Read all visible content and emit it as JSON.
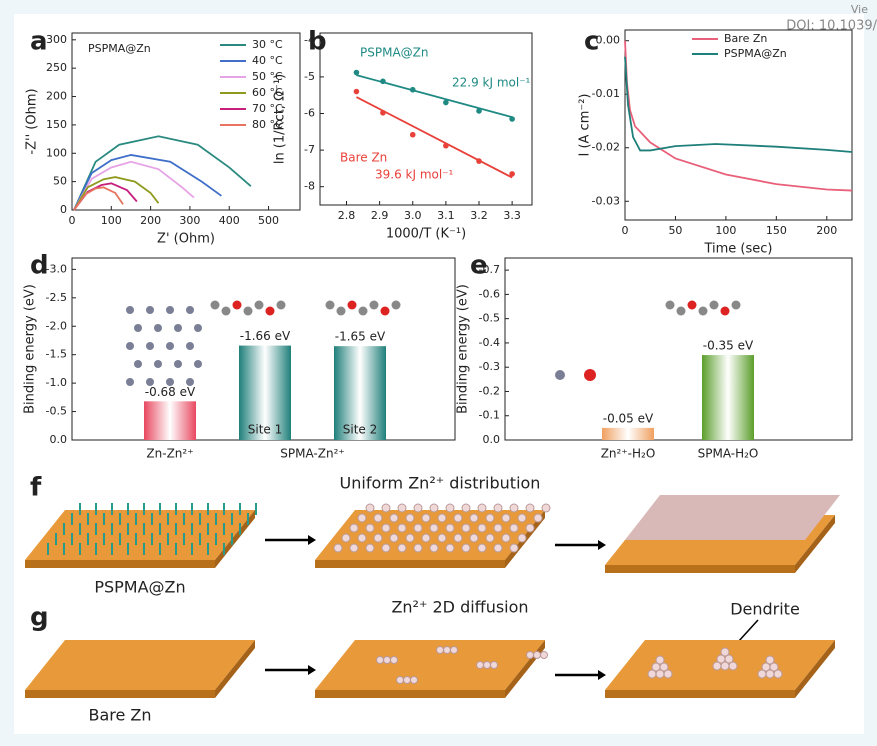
{
  "header": {
    "view": "Vie",
    "doi": "DOI: 10.1039/"
  },
  "panel_letters": [
    "a",
    "b",
    "c",
    "d",
    "e",
    "f",
    "g"
  ],
  "chart_data": [
    {
      "type": "line",
      "label": "PSPMA@Zn",
      "xlabel": "Z' (Ohm)",
      "ylabel": "-Z'' (Ohm)",
      "xlim": [
        0,
        580
      ],
      "xticks": [
        0,
        100,
        200,
        300,
        400,
        500
      ],
      "ylim": [
        0,
        312
      ],
      "yticks": [
        0,
        50,
        100,
        150,
        200,
        250,
        300
      ],
      "series": [
        {
          "name": "30 °C",
          "color": "#2a8a80",
          "x": [
            5,
            60,
            120,
            220,
            320,
            400,
            455
          ],
          "values": [
            0,
            85,
            115,
            130,
            115,
            75,
            42
          ]
        },
        {
          "name": "40 °C",
          "color": "#3f6fc8",
          "x": [
            5,
            50,
            100,
            150,
            250,
            330,
            380
          ],
          "values": [
            0,
            65,
            88,
            97,
            85,
            50,
            25
          ]
        },
        {
          "name": "50 °C",
          "color": "#e6a3e6",
          "x": [
            5,
            50,
            100,
            150,
            220,
            280,
            310
          ],
          "values": [
            0,
            55,
            75,
            85,
            72,
            40,
            22
          ]
        },
        {
          "name": "60 °C",
          "color": "#8d9a1e",
          "x": [
            5,
            40,
            80,
            110,
            160,
            200,
            220
          ],
          "values": [
            0,
            40,
            54,
            58,
            50,
            30,
            12
          ]
        },
        {
          "name": "70 °C",
          "color": "#c81e7c",
          "x": [
            5,
            40,
            75,
            100,
            140,
            165
          ],
          "values": [
            0,
            32,
            44,
            47,
            35,
            15
          ]
        },
        {
          "name": "80 °C",
          "color": "#e8735f",
          "x": [
            5,
            35,
            60,
            80,
            110,
            130
          ],
          "values": [
            0,
            28,
            38,
            40,
            30,
            10
          ]
        }
      ]
    },
    {
      "type": "scatter",
      "xlabel": "1000/T (K⁻¹)",
      "ylabel": "ln (1/Rct, Ω⁻¹)",
      "xlim": [
        2.72,
        3.36
      ],
      "xticks": [
        2.8,
        2.9,
        {
          "value": 3,
          "label": "3.0"
        },
        3.1,
        3.2,
        3.3
      ],
      "ylim": [
        -8.5,
        -3.8
      ],
      "yticks": [
        -8,
        -7,
        -6,
        -5,
        -4
      ],
      "series": [
        {
          "name": "PSPMA@Zn",
          "color": "#1f8a83",
          "annotation": "22.9 kJ mol⁻¹",
          "x": [
            2.83,
            2.91,
            3.0,
            3.1,
            3.2,
            3.3
          ],
          "values": [
            -4.88,
            -5.12,
            -5.35,
            -5.7,
            -5.93,
            -6.15
          ],
          "fit_x": [
            2.83,
            3.3
          ],
          "fit_values": [
            -4.95,
            -6.1
          ]
        },
        {
          "name": "Bare Zn",
          "color": "#e8413a",
          "annotation": "39.6 kJ mol⁻¹",
          "x": [
            2.83,
            2.91,
            3.0,
            3.1,
            3.2,
            3.3
          ],
          "values": [
            -5.4,
            -5.98,
            -6.58,
            -6.88,
            -7.3,
            -7.65
          ],
          "fit_x": [
            2.83,
            3.3
          ],
          "fit_values": [
            -5.55,
            -7.75
          ]
        }
      ]
    },
    {
      "type": "line",
      "xlabel": "Time (sec)",
      "ylabel": "I (A cm⁻²)",
      "xlim": [
        0,
        225
      ],
      "xticks": [
        0,
        50,
        100,
        150,
        200
      ],
      "ylim": [
        -0.0335,
        0.002
      ],
      "yticks": [
        {
          "value": -0.03,
          "label": "-0.03"
        },
        {
          "value": -0.02,
          "label": "-0.02"
        },
        {
          "value": -0.01,
          "label": "-0.01"
        },
        {
          "value": 0,
          "label": "0.00"
        }
      ],
      "series": [
        {
          "name": "Bare Zn",
          "color": "#e8607a",
          "x": [
            0,
            2,
            5,
            10,
            25,
            50,
            100,
            150,
            200,
            225
          ],
          "values": [
            0,
            -0.008,
            -0.013,
            -0.016,
            -0.019,
            -0.022,
            -0.025,
            -0.0268,
            -0.0278,
            -0.028
          ]
        },
        {
          "name": "PSPMA@Zn",
          "color": "#1f7f7a",
          "x": [
            0,
            3,
            8,
            15,
            25,
            50,
            90,
            150,
            200,
            225
          ],
          "values": [
            -0.003,
            -0.012,
            -0.018,
            -0.0205,
            -0.0205,
            -0.0197,
            -0.0193,
            -0.0198,
            -0.0204,
            -0.0208
          ]
        }
      ]
    },
    {
      "type": "bar",
      "ylabel": "Binding energy (eV)",
      "group_label": "SPMA-Zn²⁺",
      "ylim": [
        0,
        -3.2
      ],
      "yticks": [
        {
          "value": 0,
          "label": "0.0"
        },
        -0.5,
        {
          "value": -1,
          "label": "-1.0"
        },
        -1.5,
        {
          "value": -2,
          "label": "-2.0"
        },
        -2.5,
        {
          "value": -3,
          "label": "-3.0"
        }
      ],
      "categories": [
        "Zn-Zn²⁺",
        "Site 1",
        "Site 2"
      ],
      "values": [
        -0.68,
        -1.66,
        -1.65
      ],
      "value_labels": [
        "-0.68 eV",
        "-1.66 eV",
        "-1.65 eV"
      ],
      "colors": [
        "#e8485f",
        "#1f7f7a",
        "#1f7f7a"
      ]
    },
    {
      "type": "bar",
      "ylabel": "Binding energy (eV)",
      "ylim": [
        0,
        -0.75
      ],
      "yticks": [
        {
          "value": 0,
          "label": "0.0"
        },
        -0.1,
        -0.2,
        -0.3,
        -0.4,
        -0.5,
        -0.6,
        -0.7
      ],
      "categories": [
        "Zn²⁺-H₂O",
        "SPMA-H₂O"
      ],
      "values": [
        -0.05,
        -0.35
      ],
      "value_labels": [
        "-0.05 eV",
        "-0.35 eV"
      ],
      "colors": [
        "#f0a060",
        "#5a9e2a"
      ]
    }
  ],
  "schematic": {
    "f_title": "Uniform Zn²⁺ distribution",
    "f_label": "PSPMA@Zn",
    "g_title": "Zn²⁺ 2D diffusion",
    "g_label": "Bare Zn",
    "g_dendrite": "Dendrite"
  }
}
